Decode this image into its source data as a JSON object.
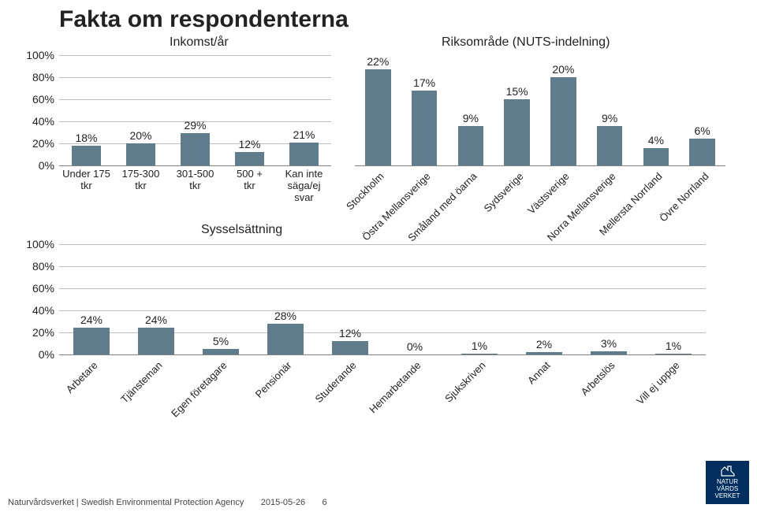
{
  "title": "Fakta om respondenterna",
  "subtitles": {
    "income": "Inkomst/år",
    "region": "Riksområde (NUTS-indelning)",
    "employment": "Sysselsättning"
  },
  "colors": {
    "bar": "#5f7d8c",
    "grid": "#bfbfbf",
    "axis": "#808080",
    "text": "#222222",
    "logo_bg": "#002f5f"
  },
  "axis": {
    "income": {
      "max": 100,
      "ticks": [
        0,
        20,
        40,
        60,
        80,
        100
      ]
    },
    "region": {
      "max": 25
    },
    "employment": {
      "max": 100,
      "ticks": [
        0,
        20,
        40,
        60,
        80,
        100
      ]
    }
  },
  "income": {
    "labels": [
      "Under 175 tkr",
      "175-300 tkr",
      "301-500 tkr",
      "500 + tkr",
      "Kan inte säga/ej svar"
    ],
    "values": [
      18,
      20,
      29,
      12,
      21
    ]
  },
  "region": {
    "labels": [
      "Stockholm",
      "Östra Mellansverige",
      "Småland med öarna",
      "Sydsverige",
      "Västsverige",
      "Norra Mellansverige",
      "Mellersta Norrland",
      "Övre Norrland"
    ],
    "values": [
      22,
      17,
      9,
      15,
      20,
      9,
      4,
      6
    ]
  },
  "employment": {
    "labels": [
      "Arbetare",
      "Tjänsteman",
      "Egen företagare",
      "Pensionär",
      "Studerande",
      "Hemarbetande",
      "Sjukskriven",
      "Annat",
      "Arbetslös",
      "Vill ej uppge"
    ],
    "values": [
      24,
      24,
      5,
      28,
      12,
      0,
      1,
      2,
      3,
      1
    ]
  },
  "footer": {
    "org": "Naturvårdsverket | Swedish Environmental Protection Agency",
    "date": "2015-05-26",
    "page": "6"
  },
  "logo": {
    "line1": "NATUR",
    "line2": "VÅRDS",
    "line3": "VERKET"
  }
}
